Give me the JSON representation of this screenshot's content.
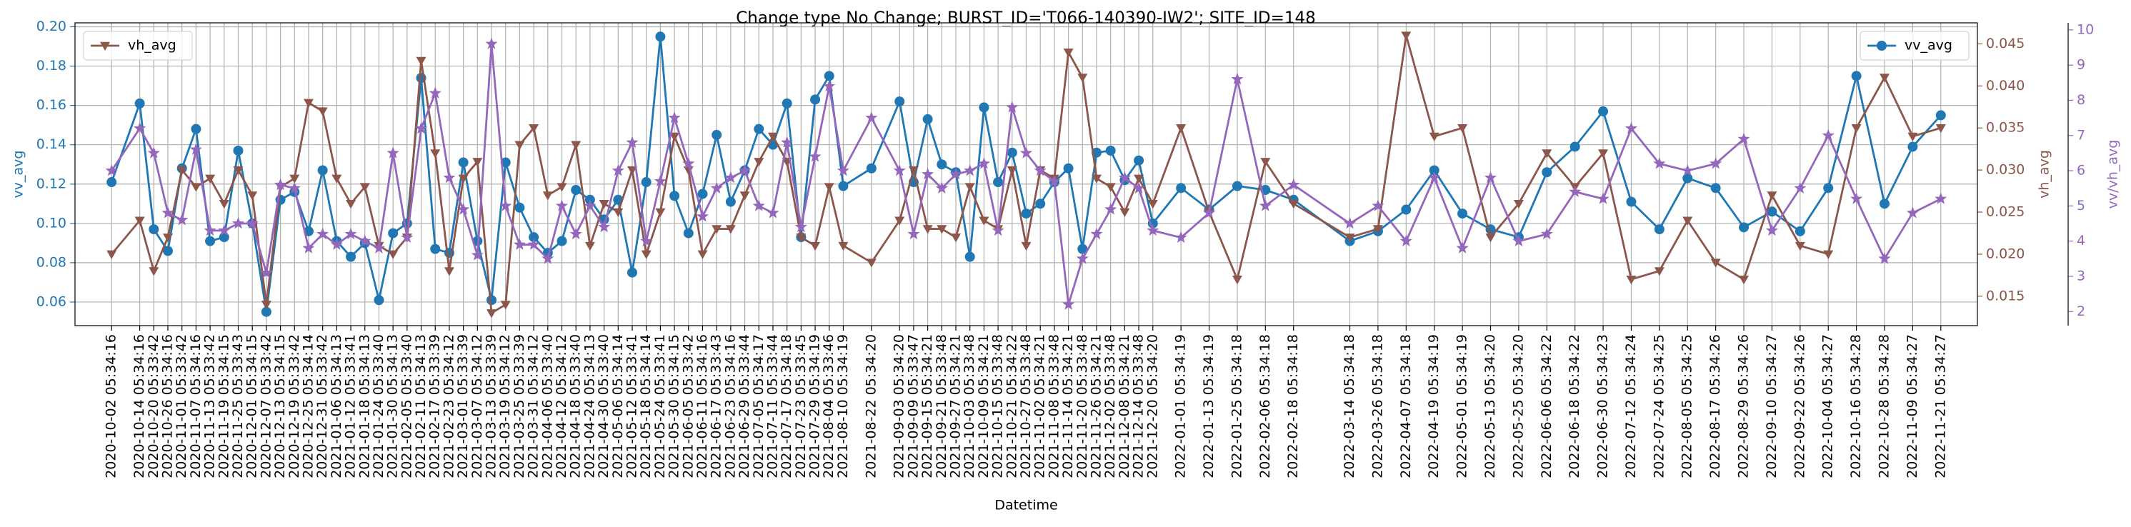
{
  "chart_data": {
    "type": "line",
    "title": "Change type No Change; BURST_ID='T066-140390-IW2'; SITE_ID=148",
    "xlabel": "Datetime",
    "ylabel": "vv_avg",
    "y2label": "vh_avg",
    "y3label": "vv/vh_avg",
    "grid": true,
    "x": [
      "2020-10-02 05:34:16",
      "2020-10-14 05:34:16",
      "2020-10-20 05:33:42",
      "2020-10-26 05:34:16",
      "2020-11-01 05:33:42",
      "2020-11-07 05:34:16",
      "2020-11-13 05:33:42",
      "2020-11-19 05:34:15",
      "2020-11-25 05:33:43",
      "2020-12-01 05:34:15",
      "2020-12-07 05:33:42",
      "2020-12-13 05:34:15",
      "2020-12-19 05:33:42",
      "2020-12-25 05:34:14",
      "2020-12-31 05:33:42",
      "2021-01-06 05:34:13",
      "2021-01-12 05:33:41",
      "2021-01-18 05:34:13",
      "2021-01-24 05:33:40",
      "2021-01-30 05:34:13",
      "2021-02-05 05:33:40",
      "2021-02-11 05:34:13",
      "2021-02-17 05:33:39",
      "2021-02-23 05:34:12",
      "2021-03-01 05:33:39",
      "2021-03-07 05:34:12",
      "2021-03-13 05:33:39",
      "2021-03-19 05:34:12",
      "2021-03-25 05:33:39",
      "2021-03-31 05:34:12",
      "2021-04-06 05:33:40",
      "2021-04-12 05:34:12",
      "2021-04-18 05:33:40",
      "2021-04-24 05:34:13",
      "2021-04-30 05:33:40",
      "2021-05-06 05:34:14",
      "2021-05-12 05:33:41",
      "2021-05-18 05:34:14",
      "2021-05-24 05:33:41",
      "2021-05-30 05:34:15",
      "2021-06-05 05:33:42",
      "2021-06-11 05:34:16",
      "2021-06-17 05:33:43",
      "2021-06-23 05:34:16",
      "2021-06-29 05:33:44",
      "2021-07-05 05:34:17",
      "2021-07-11 05:33:44",
      "2021-07-17 05:34:18",
      "2021-07-23 05:33:45",
      "2021-07-29 05:34:19",
      "2021-08-04 05:33:46",
      "2021-08-10 05:34:19",
      "2021-08-22 05:34:20",
      "2021-09-03 05:34:20",
      "2021-09-09 05:33:47",
      "2021-09-15 05:34:21",
      "2021-09-21 05:33:48",
      "2021-09-27 05:34:21",
      "2021-10-03 05:33:48",
      "2021-10-09 05:34:21",
      "2021-10-15 05:33:48",
      "2021-10-21 05:34:22",
      "2021-10-27 05:33:48",
      "2021-11-02 05:34:21",
      "2021-11-08 05:33:48",
      "2021-11-14 05:34:21",
      "2021-11-20 05:33:48",
      "2021-11-26 05:34:21",
      "2021-12-02 05:33:48",
      "2021-12-08 05:34:21",
      "2021-12-14 05:33:48",
      "2021-12-20 05:34:20",
      "2022-01-01 05:34:19",
      "2022-01-13 05:34:19",
      "2022-01-25 05:34:18",
      "2022-02-06 05:34:18",
      "2022-02-18 05:34:18",
      "2022-03-14 05:34:18",
      "2022-03-26 05:34:18",
      "2022-04-07 05:34:18",
      "2022-04-19 05:34:19",
      "2022-05-01 05:34:19",
      "2022-05-13 05:34:20",
      "2022-05-25 05:34:20",
      "2022-06-06 05:34:22",
      "2022-06-18 05:34:22",
      "2022-06-30 05:34:23",
      "2022-07-12 05:34:24",
      "2022-07-24 05:34:25",
      "2022-08-05 05:34:25",
      "2022-08-17 05:34:26",
      "2022-08-29 05:34:26",
      "2022-09-10 05:34:27",
      "2022-09-22 05:34:26",
      "2022-10-04 05:34:27",
      "2022-10-16 05:34:28",
      "2022-10-28 05:34:28",
      "2022-11-09 05:34:27",
      "2022-11-21 05:34:27"
    ],
    "ylim": [
      0.048,
      0.202
    ],
    "yticks": [
      0.06,
      0.08,
      {
        "value": 0.1,
        "label": "0.10"
      },
      0.12,
      0.14,
      0.16,
      0.18,
      {
        "value": 0.2,
        "label": "0.20"
      }
    ],
    "y2lim": [
      0.0115,
      0.0475
    ],
    "y2ticks": [
      0.015,
      {
        "value": 0.02,
        "label": "0.020"
      },
      0.025,
      {
        "value": 0.03,
        "label": "0.030"
      },
      0.035,
      {
        "value": 0.04,
        "label": "0.040"
      },
      0.045
    ],
    "y3lim": [
      1.6,
      10.2
    ],
    "y3ticks": [
      2,
      3,
      4,
      5,
      6,
      7,
      8,
      9,
      10
    ],
    "series": [
      {
        "name": "vv_avg",
        "color": "#1f77b4",
        "marker": "circle",
        "axis": "y",
        "legend": "upper right",
        "values": [
          0.121,
          0.161,
          0.097,
          0.086,
          0.128,
          0.148,
          0.091,
          0.093,
          0.137,
          0.1,
          0.055,
          0.112,
          0.116,
          0.096,
          0.127,
          0.091,
          0.083,
          0.09,
          0.061,
          0.095,
          0.1,
          0.174,
          0.087,
          0.085,
          0.131,
          0.091,
          0.061,
          0.131,
          0.108,
          0.093,
          0.085,
          0.091,
          0.117,
          0.112,
          0.102,
          0.112,
          0.075,
          0.121,
          0.195,
          0.114,
          0.095,
          0.115,
          0.145,
          0.111,
          0.127,
          0.148,
          0.14,
          0.161,
          0.093,
          0.163,
          0.175,
          0.119,
          0.128,
          0.162,
          0.121,
          0.153,
          0.13,
          0.126,
          0.083,
          0.159,
          0.121,
          0.136,
          0.105,
          0.11,
          0.121,
          0.128,
          0.087,
          0.136,
          0.137,
          0.122,
          0.132,
          0.1,
          0.118,
          0.107,
          0.119,
          0.117,
          0.112,
          0.091,
          0.096,
          0.107,
          0.127,
          0.105,
          0.097,
          0.093,
          0.126,
          0.139,
          0.157,
          0.111,
          0.097,
          0.123,
          0.118,
          0.098,
          0.106,
          0.096,
          0.118,
          0.175,
          0.11,
          0.139,
          0.155
        ]
      },
      {
        "name": "vh_avg",
        "color": "#8c564b",
        "marker": "triangle-down",
        "axis": "y2",
        "legend": "upper left",
        "values": [
          0.02,
          0.024,
          0.018,
          0.022,
          0.03,
          0.028,
          0.029,
          0.026,
          0.03,
          0.027,
          0.014,
          0.028,
          0.029,
          0.038,
          0.037,
          0.029,
          0.026,
          0.028,
          0.021,
          0.02,
          0.022,
          0.043,
          0.032,
          0.018,
          0.029,
          0.031,
          0.013,
          0.014,
          0.033,
          0.035,
          0.027,
          0.028,
          0.033,
          0.021,
          0.026,
          0.025,
          0.03,
          0.02,
          0.025,
          0.034,
          0.03,
          0.02,
          0.023,
          0.023,
          0.027,
          0.031,
          0.034,
          0.031,
          0.022,
          0.021,
          0.028,
          0.021,
          0.019,
          0.024,
          0.03,
          0.023,
          0.023,
          0.022,
          0.028,
          0.024,
          0.023,
          0.03,
          0.021,
          0.03,
          0.029,
          0.044,
          0.041,
          0.029,
          0.028,
          0.025,
          0.029,
          0.026,
          0.035,
          0.025,
          0.017,
          0.031,
          0.026,
          0.022,
          0.023,
          0.046,
          0.034,
          0.035,
          0.022,
          0.026,
          0.032,
          0.028,
          0.032,
          0.017,
          0.018,
          0.024,
          0.019,
          0.017,
          0.027,
          0.021,
          0.02,
          0.035,
          0.041,
          0.034,
          0.035
        ]
      },
      {
        "color": "#9467bd",
        "marker": "star",
        "axis": "y3",
        "values": [
          6.0,
          7.2,
          6.5,
          4.8,
          4.6,
          6.6,
          4.3,
          4.3,
          4.5,
          4.5,
          3.1,
          5.6,
          5.5,
          3.8,
          4.2,
          3.9,
          4.2,
          4.0,
          3.8,
          6.5,
          4.1,
          7.2,
          8.2,
          5.8,
          4.9,
          3.6,
          9.6,
          5.0,
          3.9,
          3.9,
          3.5,
          5.0,
          4.2,
          5.0,
          4.4,
          6.0,
          6.8,
          4.0,
          5.7,
          7.5,
          6.2,
          4.7,
          5.5,
          5.8,
          6.0,
          5.0,
          4.8,
          6.8,
          4.4,
          6.4,
          8.4,
          6.0,
          7.5,
          6.0,
          4.2,
          5.9,
          5.5,
          5.9,
          6.0,
          6.2,
          4.3,
          7.8,
          6.5,
          6.0,
          5.7,
          2.2,
          3.5,
          4.2,
          4.9,
          5.8,
          5.5,
          4.3,
          4.1,
          4.8,
          8.6,
          5.0,
          5.6,
          4.5,
          5.0,
          4.0,
          5.8,
          3.8,
          5.8,
          4.0,
          4.2,
          5.4,
          5.2,
          7.2,
          6.2,
          6.0,
          6.2,
          6.9,
          4.3,
          5.5,
          7.0,
          5.2,
          3.5,
          4.8,
          5.2
        ]
      }
    ]
  }
}
